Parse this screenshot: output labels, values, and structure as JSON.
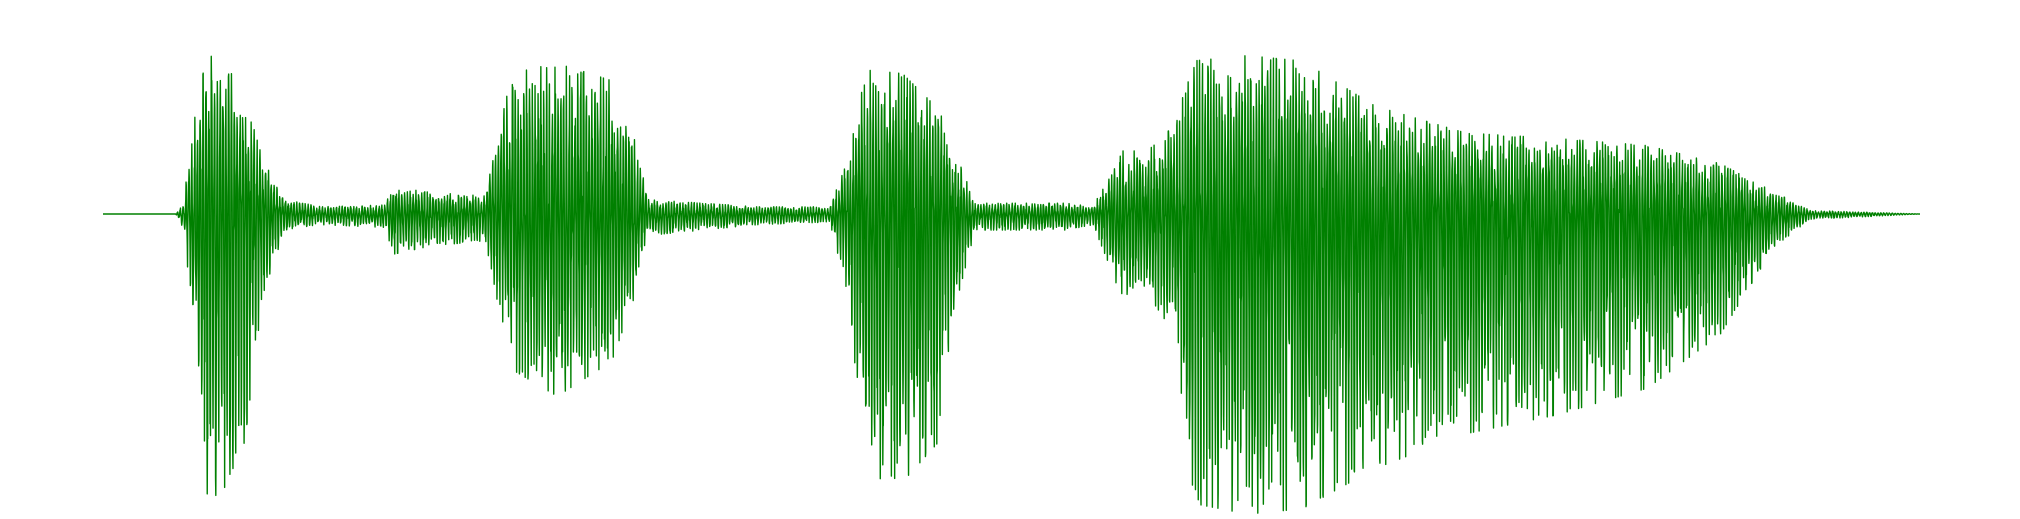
{
  "chart_data": {
    "type": "line",
    "title": "",
    "xlabel": "",
    "ylabel": "",
    "grid": false,
    "axes_visible": false,
    "legend": "none",
    "series": [
      {
        "color": "#008000",
        "envelope": [
          [
            0.0,
            0.0,
            0.0
          ],
          [
            0.04,
            0.0,
            0.0
          ],
          [
            0.044,
            0.05,
            0.05
          ],
          [
            0.05,
            0.5,
            0.4
          ],
          [
            0.056,
            0.9,
            1.05
          ],
          [
            0.065,
            0.88,
            1.05
          ],
          [
            0.078,
            0.65,
            0.85
          ],
          [
            0.088,
            0.3,
            0.3
          ],
          [
            0.1,
            0.08,
            0.06
          ],
          [
            0.12,
            0.04,
            0.04
          ],
          [
            0.155,
            0.05,
            0.05
          ],
          [
            0.16,
            0.15,
            0.15
          ],
          [
            0.18,
            0.12,
            0.12
          ],
          [
            0.21,
            0.1,
            0.1
          ],
          [
            0.225,
            0.78,
            0.58
          ],
          [
            0.25,
            0.84,
            0.68
          ],
          [
            0.28,
            0.74,
            0.55
          ],
          [
            0.293,
            0.4,
            0.3
          ],
          [
            0.3,
            0.08,
            0.08
          ],
          [
            0.33,
            0.06,
            0.06
          ],
          [
            0.36,
            0.04,
            0.04
          ],
          [
            0.4,
            0.04,
            0.03
          ],
          [
            0.41,
            0.3,
            0.3
          ],
          [
            0.42,
            0.8,
            0.98
          ],
          [
            0.44,
            0.78,
            1.0
          ],
          [
            0.46,
            0.58,
            0.85
          ],
          [
            0.47,
            0.32,
            0.32
          ],
          [
            0.48,
            0.06,
            0.06
          ],
          [
            0.53,
            0.06,
            0.06
          ],
          [
            0.545,
            0.04,
            0.04
          ],
          [
            0.56,
            0.35,
            0.3
          ],
          [
            0.575,
            0.35,
            0.3
          ],
          [
            0.59,
            0.5,
            0.45
          ],
          [
            0.6,
            0.85,
            1.08
          ],
          [
            0.63,
            0.88,
            1.12
          ],
          [
            0.66,
            0.85,
            1.1
          ],
          [
            0.7,
            0.6,
            0.95
          ],
          [
            0.75,
            0.45,
            0.82
          ],
          [
            0.8,
            0.42,
            0.75
          ],
          [
            0.85,
            0.38,
            0.65
          ],
          [
            0.89,
            0.28,
            0.45
          ],
          [
            0.92,
            0.12,
            0.12
          ],
          [
            0.94,
            0.02,
            0.02
          ],
          [
            1.0,
            0.0,
            0.0
          ]
        ]
      }
    ]
  }
}
